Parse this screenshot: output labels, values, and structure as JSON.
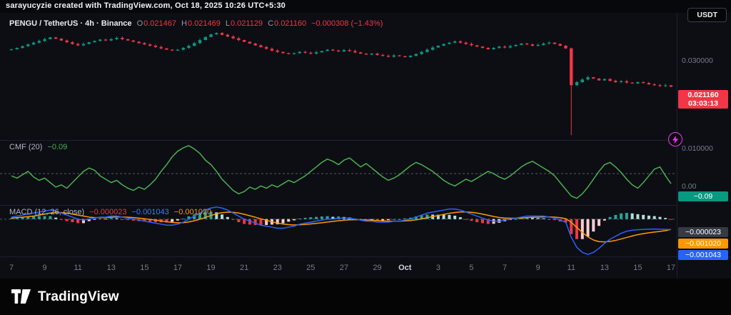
{
  "attribution": "sarayucyzie created with TradingView.com, Oct 18, 2025 10:26 UTC+5:30",
  "toolbar": {
    "currency_button": "USDT"
  },
  "legend": {
    "symbol": "PENGU / TetherUS · 4h · Binance",
    "o_key": "O",
    "o_val": "0.021467",
    "h_key": "H",
    "h_val": "0.021469",
    "l_key": "L",
    "l_val": "0.021129",
    "c_key": "C",
    "c_val": "0.021160",
    "change": "−0.000308 (−1.43%)"
  },
  "cmf_legend": {
    "title": "CMF (20)",
    "value": "−0.09"
  },
  "macd_legend": {
    "title": "MACD (12, 26, close)",
    "hist": "−0.000023",
    "macd": "−0.001043",
    "signal": "−0.001020"
  },
  "scale": {
    "tick_30": "0.030000",
    "tick_10": "0.010000",
    "last_price": "0.021160",
    "countdown": "03:03:13",
    "cmf_zero": "0.00",
    "cmf_value": "−0.09",
    "macd_hist": "−0.000023",
    "macd_signal": "−0.001020",
    "macd_line": "−0.001043"
  },
  "time_axis": {
    "labels": [
      {
        "t": "7",
        "i": 0
      },
      {
        "t": "9",
        "i": 6
      },
      {
        "t": "11",
        "i": 12
      },
      {
        "t": "13",
        "i": 18
      },
      {
        "t": "15",
        "i": 24
      },
      {
        "t": "17",
        "i": 30
      },
      {
        "t": "19",
        "i": 36
      },
      {
        "t": "21",
        "i": 42
      },
      {
        "t": "23",
        "i": 48
      },
      {
        "t": "25",
        "i": 54
      },
      {
        "t": "27",
        "i": 60
      },
      {
        "t": "29",
        "i": 66
      },
      {
        "t": "Oct",
        "i": 71,
        "major": true
      },
      {
        "t": "3",
        "i": 77
      },
      {
        "t": "5",
        "i": 83
      },
      {
        "t": "7",
        "i": 89
      },
      {
        "t": "9",
        "i": 95
      },
      {
        "t": "11",
        "i": 101
      },
      {
        "t": "13",
        "i": 107
      },
      {
        "t": "15",
        "i": 113
      },
      {
        "t": "17",
        "i": 119
      }
    ]
  },
  "footer": {
    "brand": "TradingView"
  },
  "colors": {
    "up": "#089981",
    "down": "#f23645",
    "cmf_line": "#4caf50",
    "macd_line": "#2962ff",
    "signal_line": "#ff9800"
  },
  "chart_data": [
    {
      "type": "candlestick",
      "pane": "price",
      "title": "PENGU / TetherUS · 4h · Binance",
      "last_ohlc": {
        "o": 0.021467,
        "h": 0.021469,
        "l": 0.021129,
        "c": 0.02116,
        "change": -0.000308,
        "change_pct": -1.43
      },
      "ylim": [
        0.009,
        0.038
      ],
      "y_ticks": [
        0.03,
        0.01
      ],
      "up_color": "#089981",
      "down_color": "#f23645",
      "closes": [
        0.0297,
        0.03,
        0.0304,
        0.0308,
        0.0312,
        0.0316,
        0.032,
        0.0324,
        0.0321,
        0.0317,
        0.0313,
        0.0309,
        0.0306,
        0.0309,
        0.0313,
        0.0316,
        0.0319,
        0.0317,
        0.032,
        0.0323,
        0.032,
        0.0317,
        0.0314,
        0.0311,
        0.0308,
        0.0305,
        0.0302,
        0.0299,
        0.0296,
        0.0294,
        0.0296,
        0.03,
        0.0305,
        0.0311,
        0.0318,
        0.0325,
        0.0331,
        0.0334,
        0.033,
        0.0326,
        0.0322,
        0.0318,
        0.0314,
        0.031,
        0.0306,
        0.0302,
        0.0298,
        0.0294,
        0.0291,
        0.0288,
        0.0286,
        0.0288,
        0.0291,
        0.0289,
        0.0287,
        0.029,
        0.0293,
        0.0296,
        0.0294,
        0.0292,
        0.0295,
        0.0293,
        0.029,
        0.0287,
        0.0285,
        0.0287,
        0.0284,
        0.0282,
        0.028,
        0.0283,
        0.0281,
        0.0279,
        0.0282,
        0.0286,
        0.0291,
        0.0296,
        0.0301,
        0.0305,
        0.0309,
        0.0312,
        0.0315,
        0.0312,
        0.0309,
        0.0306,
        0.0303,
        0.03,
        0.0297,
        0.03,
        0.0303,
        0.0301,
        0.0304,
        0.0307,
        0.031,
        0.0308,
        0.0305,
        0.0307,
        0.031,
        0.0312,
        0.0309,
        0.0305,
        0.0299,
        0.0215,
        0.0222,
        0.0228,
        0.0233,
        0.023,
        0.0226,
        0.0229,
        0.0225,
        0.0222,
        0.0224,
        0.0221,
        0.0219,
        0.0222,
        0.022,
        0.0217,
        0.0215,
        0.0213,
        0.02147,
        0.02116
      ],
      "overrides": [
        {
          "index": 101,
          "o": 0.0299,
          "h": 0.0301,
          "l": 0.0101,
          "c": 0.0215
        }
      ]
    },
    {
      "type": "line",
      "pane": "cmf",
      "title": "CMF (20)",
      "last": -0.09,
      "ylim": [
        -0.28,
        0.3
      ],
      "zero_line": 0,
      "color": "#4caf50",
      "values": [
        -0.02,
        -0.04,
        -0.01,
        0.02,
        -0.03,
        -0.06,
        -0.04,
        -0.08,
        -0.12,
        -0.1,
        -0.13,
        -0.08,
        -0.03,
        0.02,
        0.05,
        0.03,
        -0.02,
        -0.05,
        -0.08,
        -0.06,
        -0.1,
        -0.13,
        -0.15,
        -0.12,
        -0.14,
        -0.1,
        -0.05,
        0.02,
        0.08,
        0.15,
        0.2,
        0.23,
        0.25,
        0.22,
        0.18,
        0.12,
        0.08,
        0.02,
        -0.05,
        -0.1,
        -0.15,
        -0.18,
        -0.16,
        -0.12,
        -0.14,
        -0.11,
        -0.13,
        -0.1,
        -0.12,
        -0.09,
        -0.06,
        -0.08,
        -0.05,
        -0.02,
        0.02,
        0.06,
        0.1,
        0.13,
        0.11,
        0.08,
        0.12,
        0.14,
        0.1,
        0.06,
        0.09,
        0.05,
        0.01,
        -0.03,
        -0.06,
        -0.04,
        -0.01,
        0.03,
        0.07,
        0.1,
        0.08,
        0.05,
        0.02,
        -0.02,
        -0.06,
        -0.09,
        -0.11,
        -0.08,
        -0.05,
        -0.07,
        -0.04,
        -0.01,
        0.02,
        0.0,
        -0.03,
        -0.05,
        -0.02,
        0.02,
        0.06,
        0.09,
        0.11,
        0.08,
        0.05,
        0.02,
        -0.02,
        -0.08,
        -0.14,
        -0.2,
        -0.22,
        -0.18,
        -0.12,
        -0.05,
        0.02,
        0.08,
        0.1,
        0.06,
        0.01,
        -0.05,
        -0.1,
        -0.13,
        -0.08,
        -0.02,
        0.04,
        0.06,
        -0.02,
        -0.09
      ]
    },
    {
      "type": "macd",
      "pane": "macd",
      "title": "MACD (12, 26, close)",
      "last": {
        "hist": -2.3e-05,
        "macd": -0.001043,
        "signal": -0.00102
      },
      "ylim": [
        -0.0037,
        0.0014
      ],
      "colors": {
        "macd": "#2962ff",
        "signal": "#ff9800",
        "grow_above": "#26a69a",
        "fall_above": "#b2dfdb",
        "grow_below": "#ffcdd2",
        "fall_below": "#f23645"
      },
      "macd": [
        0.0002,
        0.0003,
        0.0004,
        0.0005,
        0.0006,
        0.0007,
        0.0008,
        0.0009,
        0.0008,
        0.0006,
        0.0004,
        0.0002,
        0.0,
        -0.0001,
        0.0,
        0.0001,
        0.0002,
        0.0002,
        0.0003,
        0.0003,
        0.0002,
        0.0001,
        0.0,
        -0.0001,
        -0.0002,
        -0.0003,
        -0.0004,
        -0.0005,
        -0.0006,
        -0.0006,
        -0.0005,
        -0.0003,
        0.0,
        0.0003,
        0.0006,
        0.0009,
        0.0011,
        0.0012,
        0.0011,
        0.0009,
        0.0006,
        0.0003,
        0.0,
        -0.0002,
        -0.0004,
        -0.0006,
        -0.0007,
        -0.0008,
        -0.0009,
        -0.0009,
        -0.0008,
        -0.0007,
        -0.0005,
        -0.0004,
        -0.0003,
        -0.0002,
        -0.0001,
        0.0,
        0.0,
        0.0001,
        0.0001,
        0.0001,
        0.0,
        -0.0001,
        -0.0002,
        -0.0002,
        -0.0003,
        -0.0003,
        -0.0003,
        -0.0002,
        -0.0002,
        -0.0001,
        0.0,
        0.0002,
        0.0004,
        0.0006,
        0.0007,
        0.0008,
        0.0009,
        0.001,
        0.001,
        0.0009,
        0.0007,
        0.0005,
        0.0003,
        0.0001,
        -0.0001,
        -0.0002,
        -0.0002,
        -0.0001,
        0.0,
        0.0001,
        0.0002,
        0.0003,
        0.0003,
        0.0003,
        0.0003,
        0.0002,
        0.0001,
        -0.0001,
        -0.0003,
        -0.0018,
        -0.0028,
        -0.0033,
        -0.0035,
        -0.0033,
        -0.0029,
        -0.0024,
        -0.002,
        -0.0017,
        -0.0014,
        -0.0012,
        -0.0011,
        -0.00105,
        -0.00102,
        -0.001,
        -0.00098,
        -0.001,
        -0.00102,
        -0.001043
      ],
      "signal": [
        0.0001,
        0.00015,
        0.0002,
        0.00025,
        0.0003,
        0.0004,
        0.0005,
        0.0006,
        0.00065,
        0.00065,
        0.0006,
        0.0005,
        0.0004,
        0.0003,
        0.0002,
        0.00015,
        0.00015,
        0.00016,
        0.00019,
        0.00021,
        0.00021,
        0.00019,
        0.00015,
        0.0001,
        4e-05,
        -3e-05,
        -0.0001,
        -0.00018,
        -0.00026,
        -0.00033,
        -0.00036,
        -0.00035,
        -0.00028,
        -0.00016,
        -1e-05,
        0.00017,
        0.00036,
        0.00053,
        0.00064,
        0.00069,
        0.00067,
        0.0006,
        0.00048,
        0.00034,
        0.00019,
        3e-05,
        -0.00012,
        -0.00026,
        -0.00039,
        -0.00049,
        -0.00055,
        -0.00058,
        -0.00056,
        -0.00053,
        -0.00048,
        -0.00042,
        -0.00036,
        -0.00029,
        -0.00023,
        -0.00016,
        -0.00011,
        -7e-05,
        -5e-05,
        -6e-05,
        -9e-05,
        -0.00011,
        -0.00015,
        -0.00018,
        -0.0002,
        -0.0002,
        -0.0002,
        -0.00018,
        -0.00014,
        -7e-05,
        2e-05,
        0.00014,
        0.00025,
        0.00036,
        0.00047,
        0.00058,
        0.00066,
        0.00071,
        0.00071,
        0.00067,
        0.0006,
        0.0005,
        0.00038,
        0.00026,
        0.00016,
        0.00011,
        9e-05,
        9e-05,
        0.00011,
        0.00015,
        0.00018,
        0.0002,
        0.00022,
        0.00022,
        0.0002,
        0.00014,
        5e-05,
        -0.00032,
        -0.00082,
        -0.00132,
        -0.00176,
        -0.00207,
        -0.00223,
        -0.00226,
        -0.00221,
        -0.00211,
        -0.00197,
        -0.00182,
        -0.00167,
        -0.00154,
        -0.00144,
        -0.00135,
        -0.00128,
        -0.00122,
        -0.00114,
        -0.00102
      ]
    }
  ]
}
